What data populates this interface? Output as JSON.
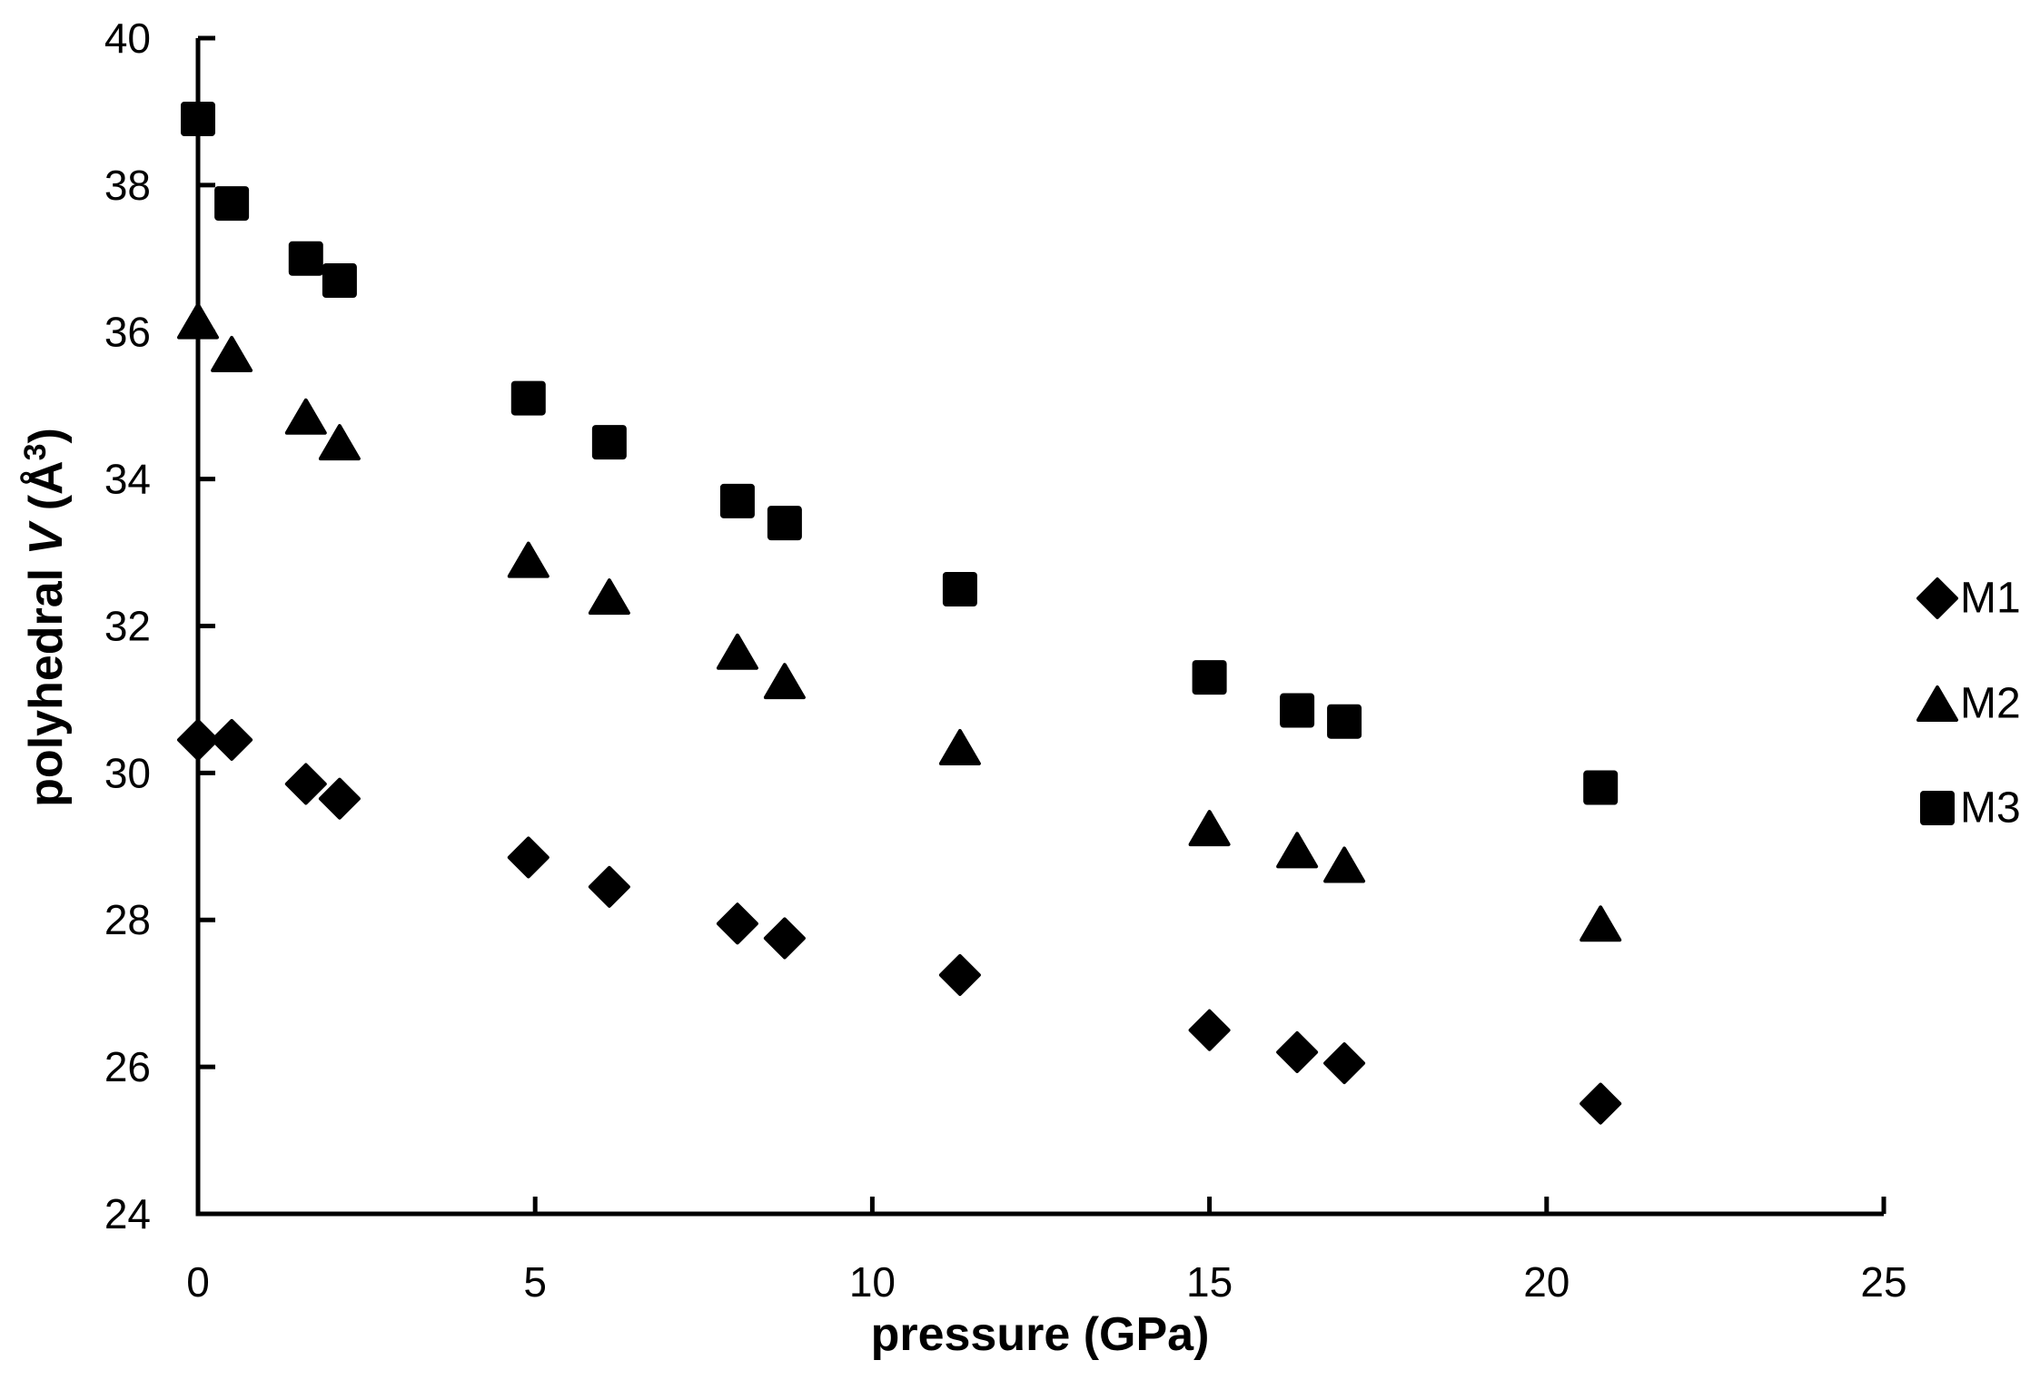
{
  "figure": {
    "background": "#ffffff",
    "marker_color": "#000000",
    "axis_color": "#000000"
  },
  "chart_data": {
    "type": "scatter",
    "title": "",
    "xlabel": "pressure (GPa)",
    "ylabel": "polyhedral V (Å³)",
    "ylabel_parts": [
      {
        "t": "polyhedral ",
        "style": "bold"
      },
      {
        "t": "V",
        "style": "bold-italic"
      },
      {
        "t": " (Å",
        "style": "bold"
      },
      {
        "t": "3",
        "style": "sup"
      },
      {
        "t": ")",
        "style": "bold"
      }
    ],
    "xlim": [
      0,
      25
    ],
    "ylim": [
      24,
      40
    ],
    "x_ticks": [
      0,
      5,
      10,
      15,
      20,
      25
    ],
    "y_ticks": [
      24,
      26,
      28,
      30,
      32,
      34,
      36,
      38,
      40
    ],
    "grid": false,
    "legend_position": "right",
    "x": [
      0,
      0.5,
      1.6,
      2.1,
      4.9,
      6.1,
      8.0,
      8.7,
      11.3,
      15.0,
      16.3,
      17.0,
      20.8
    ],
    "series": [
      {
        "name": "M1",
        "marker": "diamond",
        "color": "#000000",
        "values": [
          30.45,
          30.45,
          29.85,
          29.65,
          28.85,
          28.45,
          27.95,
          27.75,
          27.25,
          26.5,
          26.2,
          26.05,
          25.5
        ]
      },
      {
        "name": "M2",
        "marker": "triangle",
        "color": "#000000",
        "values": [
          36.15,
          35.7,
          34.85,
          34.5,
          32.9,
          32.4,
          31.65,
          31.25,
          30.35,
          29.25,
          28.95,
          28.75,
          27.95
        ]
      },
      {
        "name": "M3",
        "marker": "square",
        "color": "#000000",
        "values": [
          38.9,
          37.75,
          37.0,
          36.7,
          35.1,
          34.5,
          33.7,
          33.4,
          32.5,
          31.3,
          30.85,
          30.7,
          29.8
        ]
      }
    ]
  }
}
